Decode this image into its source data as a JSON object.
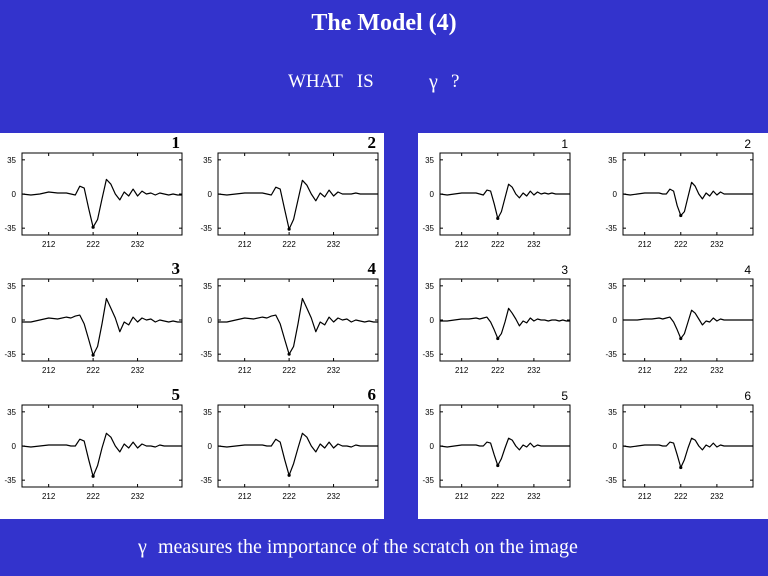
{
  "slide": {
    "title": "The Model (4)",
    "question": "WHAT   IS",
    "question_mark": "?",
    "gamma_symbol": "γ",
    "caption": "measures the importance of the scratch on the image"
  },
  "colors": {
    "background": "#3333cc",
    "panel": "#ffffff",
    "line": "#000000"
  },
  "chart_data": [
    {
      "type": "line",
      "panel": "left",
      "grid": false,
      "xlim": [
        206,
        242
      ],
      "ylim": [
        -42,
        42
      ],
      "x_ticks": [
        "212",
        "222",
        "232"
      ],
      "y_ticks": [
        "35",
        "0",
        "-35"
      ],
      "plots": [
        {
          "label": "1",
          "x": [
            206,
            208,
            210,
            212,
            214,
            216,
            217,
            218,
            219,
            220,
            221,
            222,
            223,
            224,
            225,
            226,
            227,
            228,
            229,
            230,
            231,
            232,
            233,
            234,
            235,
            236,
            237,
            238,
            239,
            240,
            241,
            242
          ],
          "y": [
            0,
            -1,
            0,
            2,
            1,
            1,
            0,
            -1,
            8,
            6,
            -15,
            -34,
            -26,
            -5,
            15,
            10,
            0,
            -6,
            2,
            -2,
            5,
            -2,
            3,
            0,
            1,
            -1,
            1,
            0,
            -1,
            0,
            -1,
            -1
          ]
        },
        {
          "label": "2",
          "x": [
            206,
            208,
            210,
            212,
            214,
            216,
            217,
            218,
            219,
            220,
            221,
            222,
            223,
            224,
            225,
            226,
            227,
            228,
            229,
            230,
            231,
            232,
            233,
            234,
            235,
            236,
            237,
            238,
            239,
            240,
            241,
            242
          ],
          "y": [
            0,
            -1,
            0,
            1,
            1,
            1,
            0,
            -1,
            7,
            5,
            -16,
            -36,
            -26,
            -6,
            14,
            9,
            0,
            -7,
            1,
            -3,
            4,
            -2,
            2,
            0,
            0,
            0,
            1,
            0,
            0,
            0,
            0,
            0
          ]
        },
        {
          "label": "3",
          "x": [
            206,
            208,
            210,
            212,
            214,
            216,
            217,
            218,
            219,
            220,
            221,
            222,
            223,
            224,
            225,
            226,
            227,
            228,
            229,
            230,
            231,
            232,
            233,
            234,
            235,
            236,
            237,
            238,
            239,
            240,
            241,
            242
          ],
          "y": [
            -2,
            -2,
            0,
            2,
            1,
            3,
            2,
            4,
            5,
            -4,
            -20,
            -36,
            -27,
            -4,
            22,
            12,
            2,
            -12,
            -2,
            -5,
            3,
            -2,
            2,
            0,
            1,
            -2,
            0,
            -1,
            -2,
            -1,
            -2,
            -2
          ]
        },
        {
          "label": "4",
          "x": [
            206,
            208,
            210,
            212,
            214,
            216,
            217,
            218,
            219,
            220,
            221,
            222,
            223,
            224,
            225,
            226,
            227,
            228,
            229,
            230,
            231,
            232,
            233,
            234,
            235,
            236,
            237,
            238,
            239,
            240,
            241,
            242
          ],
          "y": [
            -2,
            -2,
            0,
            2,
            1,
            3,
            2,
            4,
            5,
            -4,
            -20,
            -35,
            -27,
            -4,
            22,
            12,
            2,
            -12,
            -2,
            -5,
            3,
            -2,
            2,
            0,
            1,
            -2,
            0,
            -1,
            -2,
            -1,
            -2,
            -2
          ]
        },
        {
          "label": "5",
          "x": [
            206,
            208,
            210,
            212,
            214,
            216,
            217,
            218,
            219,
            220,
            221,
            222,
            223,
            224,
            225,
            226,
            227,
            228,
            229,
            230,
            231,
            232,
            233,
            234,
            235,
            236,
            237,
            238,
            239,
            240,
            241,
            242
          ],
          "y": [
            0,
            -1,
            0,
            1,
            1,
            1,
            0,
            0,
            7,
            5,
            -14,
            -31,
            -20,
            -2,
            13,
            9,
            0,
            -6,
            2,
            -2,
            4,
            -2,
            2,
            0,
            0,
            -1,
            1,
            0,
            0,
            0,
            0,
            0
          ]
        },
        {
          "label": "6",
          "x": [
            206,
            208,
            210,
            212,
            214,
            216,
            217,
            218,
            219,
            220,
            221,
            222,
            223,
            224,
            225,
            226,
            227,
            228,
            229,
            230,
            231,
            232,
            233,
            234,
            235,
            236,
            237,
            238,
            239,
            240,
            241,
            242
          ],
          "y": [
            0,
            -1,
            0,
            1,
            1,
            1,
            0,
            0,
            7,
            4,
            -14,
            -30,
            -18,
            -2,
            13,
            9,
            0,
            -6,
            2,
            -2,
            4,
            -2,
            2,
            0,
            0,
            -1,
            1,
            0,
            0,
            0,
            0,
            0
          ]
        }
      ]
    },
    {
      "type": "line",
      "panel": "right",
      "grid": false,
      "xlim": [
        206,
        242
      ],
      "ylim": [
        -42,
        42
      ],
      "x_ticks": [
        "212",
        "222",
        "232"
      ],
      "y_ticks": [
        "35",
        "0",
        "-35"
      ],
      "plots": [
        {
          "label": "1",
          "x": [
            206,
            208,
            210,
            212,
            214,
            216,
            217,
            218,
            219,
            220,
            221,
            222,
            223,
            224,
            225,
            226,
            227,
            228,
            229,
            230,
            231,
            232,
            233,
            234,
            235,
            236,
            237,
            238,
            239,
            240,
            241,
            242
          ],
          "y": [
            0,
            -1,
            0,
            1,
            1,
            1,
            0,
            -1,
            4,
            3,
            -10,
            -25,
            -18,
            -4,
            10,
            7,
            0,
            -4,
            1,
            -2,
            3,
            -1,
            2,
            0,
            1,
            0,
            1,
            0,
            0,
            0,
            0,
            0
          ]
        },
        {
          "label": "2",
          "x": [
            206,
            208,
            210,
            212,
            214,
            216,
            217,
            218,
            219,
            220,
            221,
            222,
            223,
            224,
            225,
            226,
            227,
            228,
            229,
            230,
            231,
            232,
            233,
            234,
            235,
            236,
            237,
            238,
            239,
            240,
            241,
            242
          ],
          "y": [
            0,
            -1,
            0,
            1,
            1,
            1,
            0,
            0,
            5,
            3,
            -12,
            -22,
            -18,
            -3,
            12,
            8,
            0,
            -5,
            1,
            -2,
            3,
            -1,
            2,
            0,
            0,
            0,
            0,
            0,
            0,
            0,
            0,
            0
          ]
        },
        {
          "label": "3",
          "x": [
            206,
            208,
            210,
            212,
            214,
            216,
            217,
            218,
            219,
            220,
            221,
            222,
            223,
            224,
            225,
            226,
            227,
            228,
            229,
            230,
            231,
            232,
            233,
            234,
            235,
            236,
            237,
            238,
            239,
            240,
            241,
            242
          ],
          "y": [
            -1,
            -1,
            0,
            1,
            1,
            2,
            1,
            2,
            3,
            -2,
            -10,
            -19,
            -14,
            -2,
            12,
            7,
            1,
            -6,
            -1,
            -3,
            2,
            -1,
            1,
            0,
            0,
            -1,
            0,
            0,
            -1,
            0,
            -1,
            -1
          ]
        },
        {
          "label": "4",
          "x": [
            206,
            208,
            210,
            212,
            214,
            216,
            217,
            218,
            219,
            220,
            221,
            222,
            223,
            224,
            225,
            226,
            227,
            228,
            229,
            230,
            231,
            232,
            233,
            234,
            235,
            236,
            237,
            238,
            239,
            240,
            241,
            242
          ],
          "y": [
            0,
            0,
            0,
            1,
            1,
            2,
            1,
            2,
            3,
            -2,
            -10,
            -19,
            -14,
            -2,
            10,
            7,
            1,
            -5,
            -1,
            -2,
            2,
            -1,
            1,
            0,
            0,
            0,
            0,
            0,
            0,
            0,
            0,
            0
          ]
        },
        {
          "label": "5",
          "x": [
            206,
            208,
            210,
            212,
            214,
            216,
            217,
            218,
            219,
            220,
            221,
            222,
            223,
            224,
            225,
            226,
            227,
            228,
            229,
            230,
            231,
            232,
            233,
            234,
            235,
            236,
            237,
            238,
            239,
            240,
            241,
            242
          ],
          "y": [
            0,
            -1,
            0,
            1,
            1,
            1,
            0,
            0,
            4,
            3,
            -9,
            -20,
            -13,
            -2,
            8,
            6,
            0,
            -4,
            1,
            -1,
            3,
            -1,
            1,
            0,
            0,
            0,
            0,
            0,
            0,
            0,
            0,
            0
          ]
        },
        {
          "label": "6",
          "x": [
            206,
            208,
            210,
            212,
            214,
            216,
            217,
            218,
            219,
            220,
            221,
            222,
            223,
            224,
            225,
            226,
            227,
            228,
            229,
            230,
            231,
            232,
            233,
            234,
            235,
            236,
            237,
            238,
            239,
            240,
            241,
            242
          ],
          "y": [
            0,
            -1,
            0,
            1,
            1,
            1,
            0,
            0,
            4,
            3,
            -9,
            -22,
            -14,
            -2,
            8,
            6,
            0,
            -4,
            1,
            -1,
            3,
            -1,
            1,
            0,
            0,
            0,
            0,
            0,
            0,
            0,
            0,
            0
          ]
        }
      ]
    }
  ]
}
